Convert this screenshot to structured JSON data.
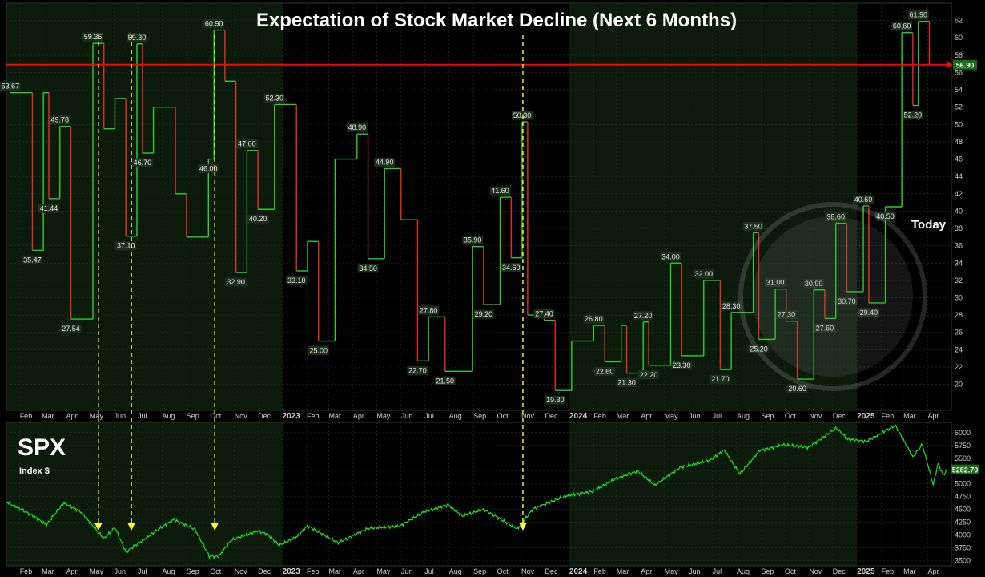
{
  "chart_data": [
    {
      "type": "line",
      "title": "Expectation of Stock Market Decline (Next 6 Months)",
      "ylim": [
        17,
        64
      ],
      "y_ticks": [
        20,
        22,
        24,
        26,
        28,
        30,
        32,
        34,
        36,
        38,
        40,
        42,
        44,
        46,
        48,
        50,
        52,
        54,
        56,
        58,
        60,
        62
      ],
      "x_tick_labels": [
        "Feb",
        "Mar",
        "Apr",
        "May",
        "Jun",
        "Jul",
        "Aug",
        "Sep",
        "Oct",
        "Nov",
        "Dec",
        "2023",
        "Feb",
        "Mar",
        "Apr",
        "May",
        "Jun",
        "Jul",
        "Aug",
        "Sep",
        "Oct",
        "Nov",
        "Dec",
        "2024",
        "Feb",
        "Mar",
        "Apr",
        "May",
        "Jun",
        "Jul",
        "Aug",
        "Sep",
        "Oct",
        "Nov",
        "Dec",
        "2025",
        "Feb",
        "Mar",
        "Apr"
      ],
      "x_range": [
        "2022-01-15",
        "2025-05-01"
      ],
      "grid": true,
      "reference_line": {
        "value": 56.9,
        "label": "56.90",
        "color": "#ff0000"
      },
      "annotation": "Today",
      "series": [
        {
          "values": [
            [
              "2022-01-20",
              53.67
            ],
            [
              "2022-02-17",
              35.47
            ],
            [
              "2022-03-03",
              53.67
            ],
            [
              "2022-03-10",
              41.44
            ],
            [
              "2022-03-24",
              49.78
            ],
            [
              "2022-04-07",
              27.54
            ],
            [
              "2022-05-05",
              59.36
            ],
            [
              "2022-05-19",
              49.5
            ],
            [
              "2022-06-02",
              53.0
            ],
            [
              "2022-06-16",
              37.1
            ],
            [
              "2022-06-30",
              59.3
            ],
            [
              "2022-07-07",
              46.7
            ],
            [
              "2022-07-21",
              52.0
            ],
            [
              "2022-08-18",
              42.0
            ],
            [
              "2022-09-01",
              37.0
            ],
            [
              "2022-09-29",
              46.0
            ],
            [
              "2022-10-06",
              60.9
            ],
            [
              "2022-10-20",
              55.0
            ],
            [
              "2022-11-03",
              32.9
            ],
            [
              "2022-11-17",
              47.0
            ],
            [
              "2022-12-01",
              40.2
            ],
            [
              "2022-12-22",
              52.3
            ],
            [
              "2023-01-19",
              33.1
            ],
            [
              "2023-02-02",
              36.5
            ],
            [
              "2023-02-16",
              25.0
            ],
            [
              "2023-03-09",
              46.0
            ],
            [
              "2023-04-06",
              48.9
            ],
            [
              "2023-04-20",
              34.5
            ],
            [
              "2023-05-11",
              44.9
            ],
            [
              "2023-06-01",
              39.0
            ],
            [
              "2023-06-22",
              22.7
            ],
            [
              "2023-07-06",
              27.8
            ],
            [
              "2023-07-27",
              21.5
            ],
            [
              "2023-08-31",
              35.9
            ],
            [
              "2023-09-14",
              29.2
            ],
            [
              "2023-10-05",
              41.6
            ],
            [
              "2023-10-19",
              34.6
            ],
            [
              "2023-11-02",
              50.3
            ],
            [
              "2023-11-09",
              28.0
            ],
            [
              "2023-11-30",
              27.4
            ],
            [
              "2023-12-14",
              19.3
            ],
            [
              "2024-01-04",
              25.0
            ],
            [
              "2024-02-01",
              26.8
            ],
            [
              "2024-02-15",
              22.6
            ],
            [
              "2024-03-07",
              26.8
            ],
            [
              "2024-03-14",
              21.3
            ],
            [
              "2024-04-04",
              27.2
            ],
            [
              "2024-04-11",
              22.2
            ],
            [
              "2024-05-09",
              34.0
            ],
            [
              "2024-05-23",
              23.3
            ],
            [
              "2024-06-20",
              32.0
            ],
            [
              "2024-07-11",
              21.7
            ],
            [
              "2024-07-25",
              28.3
            ],
            [
              "2024-08-22",
              37.5
            ],
            [
              "2024-08-29",
              25.2
            ],
            [
              "2024-09-19",
              31.0
            ],
            [
              "2024-10-03",
              27.3
            ],
            [
              "2024-10-17",
              20.6
            ],
            [
              "2024-11-07",
              30.9
            ],
            [
              "2024-11-21",
              27.6
            ],
            [
              "2024-12-05",
              38.6
            ],
            [
              "2024-12-19",
              30.7
            ],
            [
              "2025-01-09",
              40.6
            ],
            [
              "2025-01-16",
              29.4
            ],
            [
              "2025-02-06",
              40.5
            ],
            [
              "2025-02-27",
              60.6
            ],
            [
              "2025-03-13",
              52.2
            ],
            [
              "2025-03-20",
              61.9
            ],
            [
              "2025-04-03",
              56.9
            ]
          ]
        }
      ],
      "point_labels": [
        {
          "x": "2022-01-20",
          "value": "53.67",
          "y": 53.67,
          "pos": "above"
        },
        {
          "x": "2022-02-17",
          "value": "35.47",
          "y": 35.47,
          "pos": "below"
        },
        {
          "x": "2022-03-10",
          "value": "41.44",
          "y": 41.44,
          "pos": "below"
        },
        {
          "x": "2022-03-24",
          "value": "49.78",
          "y": 49.78,
          "pos": "above"
        },
        {
          "x": "2022-04-07",
          "value": "27.54",
          "y": 27.54,
          "pos": "below"
        },
        {
          "x": "2022-05-05",
          "value": "59.36",
          "y": 59.36,
          "pos": "above"
        },
        {
          "x": "2022-06-16",
          "value": "37.10",
          "y": 37.1,
          "pos": "below"
        },
        {
          "x": "2022-06-30",
          "value": "59.30",
          "y": 59.3,
          "pos": "above"
        },
        {
          "x": "2022-07-07",
          "value": "46.70",
          "y": 46.7,
          "pos": "below"
        },
        {
          "x": "2022-09-29",
          "value": "46.00",
          "y": 46.0,
          "pos": "below"
        },
        {
          "x": "2022-10-06",
          "value": "60.90",
          "y": 60.9,
          "pos": "above"
        },
        {
          "x": "2022-11-03",
          "value": "32.90",
          "y": 32.9,
          "pos": "below"
        },
        {
          "x": "2022-11-17",
          "value": "47.00",
          "y": 47.0,
          "pos": "above"
        },
        {
          "x": "2022-12-01",
          "value": "40.20",
          "y": 40.2,
          "pos": "below"
        },
        {
          "x": "2022-12-22",
          "value": "52.30",
          "y": 52.3,
          "pos": "above"
        },
        {
          "x": "2023-01-19",
          "value": "33.10",
          "y": 33.1,
          "pos": "below"
        },
        {
          "x": "2023-02-16",
          "value": "25.00",
          "y": 25.0,
          "pos": "below"
        },
        {
          "x": "2023-04-06",
          "value": "48.90",
          "y": 48.9,
          "pos": "above"
        },
        {
          "x": "2023-04-20",
          "value": "34.50",
          "y": 34.5,
          "pos": "below"
        },
        {
          "x": "2023-05-11",
          "value": "44.90",
          "y": 44.9,
          "pos": "above"
        },
        {
          "x": "2023-06-22",
          "value": "22.70",
          "y": 22.7,
          "pos": "below"
        },
        {
          "x": "2023-07-06",
          "value": "27.80",
          "y": 27.8,
          "pos": "above"
        },
        {
          "x": "2023-07-27",
          "value": "21.50",
          "y": 21.5,
          "pos": "below"
        },
        {
          "x": "2023-08-31",
          "value": "35.90",
          "y": 35.9,
          "pos": "above"
        },
        {
          "x": "2023-09-14",
          "value": "29.20",
          "y": 29.2,
          "pos": "below"
        },
        {
          "x": "2023-10-05",
          "value": "41.60",
          "y": 41.6,
          "pos": "above"
        },
        {
          "x": "2023-10-19",
          "value": "34.60",
          "y": 34.6,
          "pos": "below"
        },
        {
          "x": "2023-11-02",
          "value": "50.30",
          "y": 50.3,
          "pos": "above"
        },
        {
          "x": "2023-11-30",
          "value": "27.40",
          "y": 27.4,
          "pos": "above"
        },
        {
          "x": "2023-12-14",
          "value": "19.30",
          "y": 19.3,
          "pos": "below"
        },
        {
          "x": "2024-02-01",
          "value": "26.80",
          "y": 26.8,
          "pos": "above"
        },
        {
          "x": "2024-02-15",
          "value": "22.60",
          "y": 22.6,
          "pos": "below"
        },
        {
          "x": "2024-03-14",
          "value": "21.30",
          "y": 21.3,
          "pos": "below"
        },
        {
          "x": "2024-04-04",
          "value": "27.20",
          "y": 27.2,
          "pos": "above"
        },
        {
          "x": "2024-04-11",
          "value": "22.20",
          "y": 22.2,
          "pos": "below"
        },
        {
          "x": "2024-05-09",
          "value": "34.00",
          "y": 34.0,
          "pos": "above"
        },
        {
          "x": "2024-05-23",
          "value": "23.30",
          "y": 23.3,
          "pos": "below"
        },
        {
          "x": "2024-06-20",
          "value": "32.00",
          "y": 32.0,
          "pos": "above"
        },
        {
          "x": "2024-07-11",
          "value": "21.70",
          "y": 21.7,
          "pos": "below"
        },
        {
          "x": "2024-07-25",
          "value": "28.30",
          "y": 28.3,
          "pos": "above"
        },
        {
          "x": "2024-08-22",
          "value": "37.50",
          "y": 37.5,
          "pos": "above"
        },
        {
          "x": "2024-08-29",
          "value": "25.20",
          "y": 25.2,
          "pos": "below"
        },
        {
          "x": "2024-09-19",
          "value": "31.00",
          "y": 31.0,
          "pos": "above"
        },
        {
          "x": "2024-10-03",
          "value": "27.30",
          "y": 27.3,
          "pos": "above"
        },
        {
          "x": "2024-10-17",
          "value": "20.60",
          "y": 20.6,
          "pos": "below"
        },
        {
          "x": "2024-11-07",
          "value": "30.90",
          "y": 30.9,
          "pos": "above"
        },
        {
          "x": "2024-11-21",
          "value": "27.60",
          "y": 27.6,
          "pos": "below"
        },
        {
          "x": "2024-12-05",
          "value": "38.60",
          "y": 38.6,
          "pos": "above"
        },
        {
          "x": "2024-12-19",
          "value": "30.70",
          "y": 30.7,
          "pos": "below"
        },
        {
          "x": "2025-01-09",
          "value": "40.60",
          "y": 40.6,
          "pos": "above"
        },
        {
          "x": "2025-01-16",
          "value": "29.40",
          "y": 29.4,
          "pos": "below"
        },
        {
          "x": "2025-02-06",
          "value": "40.50",
          "y": 40.5,
          "pos": "below"
        },
        {
          "x": "2025-02-27",
          "value": "60.60",
          "y": 60.6,
          "pos": "above"
        },
        {
          "x": "2025-03-13",
          "value": "52.20",
          "y": 52.2,
          "pos": "below"
        },
        {
          "x": "2025-03-20",
          "value": "61.90",
          "y": 61.9,
          "pos": "above"
        }
      ]
    },
    {
      "type": "line",
      "title": "SPX",
      "subtitle": "Index $",
      "ylim": [
        3400,
        6200
      ],
      "y_ticks": [
        3500,
        3750,
        4000,
        4250,
        4500,
        4750,
        5000,
        5250,
        5500,
        5750,
        6000
      ],
      "last_value_label": "5282.70",
      "series": [
        {
          "values": [
            [
              "2022-01-15",
              4650
            ],
            [
              "2022-02-15",
              4400
            ],
            [
              "2022-03-07",
              4200
            ],
            [
              "2022-03-29",
              4630
            ],
            [
              "2022-04-20",
              4450
            ],
            [
              "2022-05-19",
              3930
            ],
            [
              "2022-06-02",
              4150
            ],
            [
              "2022-06-16",
              3670
            ],
            [
              "2022-07-01",
              3830
            ],
            [
              "2022-07-29",
              4130
            ],
            [
              "2022-08-16",
              4300
            ],
            [
              "2022-09-12",
              4110
            ],
            [
              "2022-09-30",
              3590
            ],
            [
              "2022-10-12",
              3580
            ],
            [
              "2022-10-28",
              3900
            ],
            [
              "2022-11-30",
              4080
            ],
            [
              "2022-12-13",
              4020
            ],
            [
              "2022-12-28",
              3800
            ],
            [
              "2023-01-20",
              3970
            ],
            [
              "2023-02-02",
              4180
            ],
            [
              "2023-03-13",
              3850
            ],
            [
              "2023-04-20",
              4130
            ],
            [
              "2023-05-31",
              4180
            ],
            [
              "2023-06-30",
              4450
            ],
            [
              "2023-07-31",
              4590
            ],
            [
              "2023-08-18",
              4370
            ],
            [
              "2023-09-14",
              4500
            ],
            [
              "2023-10-27",
              4120
            ],
            [
              "2023-11-16",
              4510
            ],
            [
              "2023-12-29",
              4770
            ],
            [
              "2024-01-31",
              4850
            ],
            [
              "2024-02-29",
              5100
            ],
            [
              "2024-03-28",
              5250
            ],
            [
              "2024-04-19",
              4970
            ],
            [
              "2024-05-21",
              5320
            ],
            [
              "2024-06-28",
              5460
            ],
            [
              "2024-07-16",
              5660
            ],
            [
              "2024-08-05",
              5190
            ],
            [
              "2024-08-30",
              5650
            ],
            [
              "2024-09-30",
              5760
            ],
            [
              "2024-10-31",
              5710
            ],
            [
              "2024-12-06",
              6090
            ],
            [
              "2024-12-20",
              5870
            ],
            [
              "2025-01-13",
              5830
            ],
            [
              "2025-02-19",
              6140
            ],
            [
              "2025-03-13",
              5520
            ],
            [
              "2025-03-25",
              5770
            ],
            [
              "2025-04-08",
              4980
            ],
            [
              "2025-04-14",
              5400
            ],
            [
              "2025-04-21",
              5160
            ],
            [
              "2025-04-25",
              5282.7
            ]
          ]
        }
      ],
      "arrow_dates": [
        "2022-05-12",
        "2022-06-23",
        "2022-10-07",
        "2023-11-03"
      ]
    }
  ]
}
